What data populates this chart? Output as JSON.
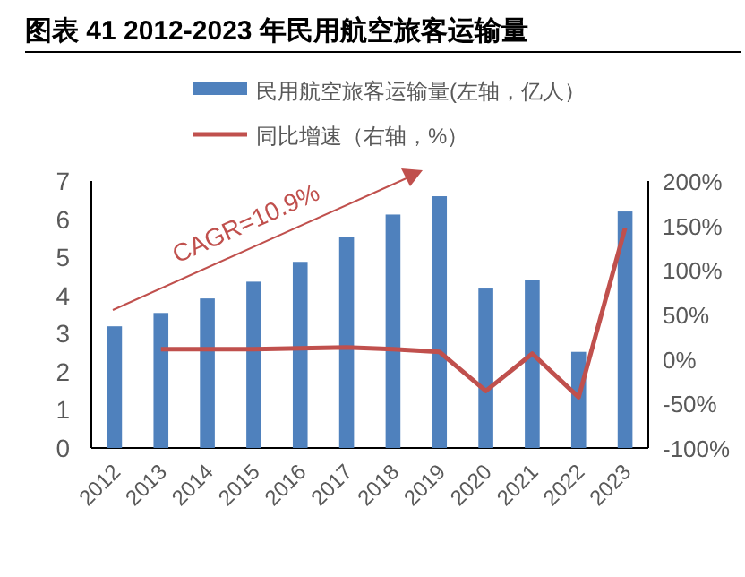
{
  "chart_data": {
    "type": "bar",
    "title": "图表 41 2012-2023 年民用航空旅客运输量",
    "categories": [
      "2012",
      "2013",
      "2014",
      "2015",
      "2016",
      "2017",
      "2018",
      "2019",
      "2020",
      "2021",
      "2022",
      "2023"
    ],
    "series": [
      {
        "name": "民用航空旅客运输量(左轴，亿人）",
        "color": "#4f81bd",
        "values": [
          3.19,
          3.54,
          3.92,
          4.36,
          4.88,
          5.52,
          6.12,
          6.6,
          4.18,
          4.41,
          2.52,
          6.2
        ]
      },
      {
        "name": "同比增速（右轴，%）",
        "type": "line",
        "axis": "y2",
        "color": "#c0504d",
        "values": [
          null,
          11,
          11,
          11,
          12,
          13,
          11,
          8,
          -36,
          6,
          -43,
          147
        ]
      }
    ],
    "ylim": [
      0,
      7
    ],
    "yticks": [
      0,
      1,
      2,
      3,
      4,
      5,
      6,
      7
    ],
    "y2lim": [
      -100,
      200
    ],
    "y2ticks": [
      {
        "value": -100,
        "label": "-100%"
      },
      {
        "value": -50,
        "label": "-50%"
      },
      {
        "value": 0,
        "label": "0%"
      },
      {
        "value": 50,
        "label": "50%"
      },
      {
        "value": 100,
        "label": "100%"
      },
      {
        "value": 150,
        "label": "150%"
      },
      {
        "value": 200,
        "label": "200%"
      }
    ],
    "legend": "top",
    "annotations": [
      "CAGR=10.9%"
    ]
  }
}
